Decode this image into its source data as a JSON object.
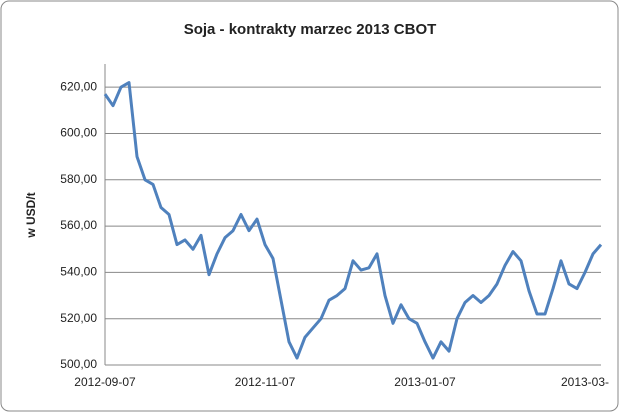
{
  "chart_data": {
    "type": "line",
    "title": "Soja - kontrakty marzec 2013 CBOT",
    "y_label": "w USD/t",
    "categories": [
      "2012-09-07",
      null,
      null,
      null,
      null,
      null,
      null,
      null,
      null,
      null,
      null,
      null,
      null,
      null,
      null,
      null,
      null,
      null,
      null,
      null,
      "2012-11-07",
      null,
      null,
      null,
      null,
      null,
      null,
      null,
      null,
      null,
      null,
      null,
      null,
      null,
      null,
      null,
      null,
      null,
      null,
      null,
      "2013-01-07",
      null,
      null,
      null,
      null,
      null,
      null,
      null,
      null,
      null,
      null,
      null,
      null,
      null,
      null,
      null,
      null,
      null,
      null,
      null,
      "2013-03-",
      null,
      null
    ],
    "series": [
      {
        "name": "Soja",
        "color": "#4f81bd",
        "values": [
          617,
          612,
          620,
          622,
          590,
          580,
          578,
          568,
          565,
          552,
          554,
          550,
          556,
          539,
          548,
          555,
          558,
          565,
          558,
          563,
          552,
          546,
          528,
          510,
          503,
          512,
          516,
          520,
          528,
          530,
          533,
          545,
          541,
          542,
          548,
          530,
          518,
          526,
          520,
          518,
          510,
          503,
          510,
          506,
          520,
          527,
          530,
          527,
          530,
          535,
          543,
          549,
          545,
          532,
          522,
          522,
          533,
          545,
          535,
          533,
          540,
          548,
          552
        ]
      }
    ],
    "ylim": [
      500,
      630
    ],
    "yticks": [
      {
        "value": 500,
        "label": "500,00"
      },
      {
        "value": 520,
        "label": "520,00"
      },
      {
        "value": 540,
        "label": "540,00"
      },
      {
        "value": 560,
        "label": "560,00"
      },
      {
        "value": 580,
        "label": "580,00"
      },
      {
        "value": 600,
        "label": "600,00"
      },
      {
        "value": 620,
        "label": "620,00"
      }
    ],
    "grid": true
  }
}
